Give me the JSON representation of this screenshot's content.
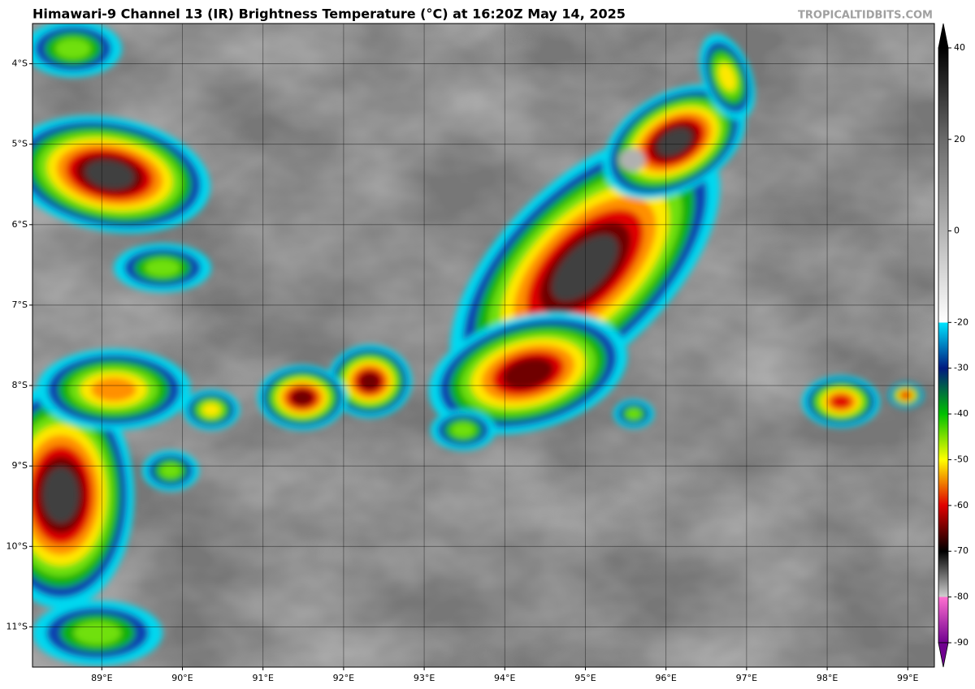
{
  "map": {
    "title": "Himawari-9 Channel 13 (IR) Brightness Temperature (°C) at 16:20Z May 14, 2025",
    "source": "TROPICALTIDBITS.COM",
    "lon_range": [
      88.14,
      99.33
    ],
    "lat_range": [
      -11.5,
      -3.5
    ],
    "lon_ticks": [
      {
        "value": 89,
        "label": "89°E"
      },
      {
        "value": 90,
        "label": "90°E"
      },
      {
        "value": 91,
        "label": "91°E"
      },
      {
        "value": 92,
        "label": "92°E"
      },
      {
        "value": 93,
        "label": "93°E"
      },
      {
        "value": 94,
        "label": "94°E"
      },
      {
        "value": 95,
        "label": "95°E"
      },
      {
        "value": 96,
        "label": "96°E"
      },
      {
        "value": 97,
        "label": "97°E"
      },
      {
        "value": 98,
        "label": "98°E"
      },
      {
        "value": 99,
        "label": "99°E"
      }
    ],
    "lat_ticks": [
      {
        "value": -4,
        "label": "4°S"
      },
      {
        "value": -5,
        "label": "5°S"
      },
      {
        "value": -6,
        "label": "6°S"
      },
      {
        "value": -7,
        "label": "7°S"
      },
      {
        "value": -8,
        "label": "8°S"
      },
      {
        "value": -9,
        "label": "9°S"
      },
      {
        "value": -10,
        "label": "10°S"
      },
      {
        "value": -11,
        "label": "11°S"
      }
    ],
    "colorbar": {
      "range": [
        -90,
        40
      ],
      "ticks": [
        40,
        20,
        0,
        -20,
        -30,
        -40,
        -50,
        -60,
        -70,
        -80,
        -90
      ],
      "stops": [
        {
          "value": 40,
          "color": "#000000"
        },
        {
          "value": 20,
          "color": "#6a6a6a"
        },
        {
          "value": -20,
          "color": "#ffffff"
        },
        {
          "value": -20,
          "color": "#00e5ff"
        },
        {
          "value": -30,
          "color": "#001a80"
        },
        {
          "value": -40,
          "color": "#00c000"
        },
        {
          "value": -50,
          "color": "#ffff00"
        },
        {
          "value": -60,
          "color": "#e00000"
        },
        {
          "value": -70,
          "color": "#000000"
        },
        {
          "value": -80,
          "color": "#d0d0d0"
        },
        {
          "value": -80,
          "color": "#ff70d0"
        },
        {
          "value": -90,
          "color": "#700090"
        }
      ]
    }
  }
}
